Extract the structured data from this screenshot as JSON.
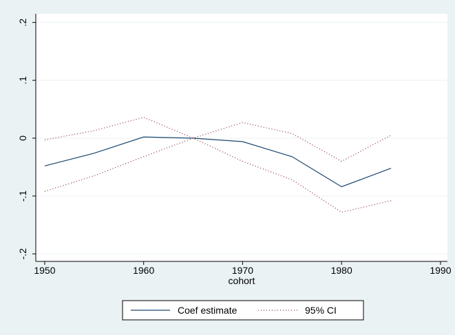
{
  "chart_data": {
    "type": "line",
    "x_label": "cohort",
    "x": [
      1950,
      1955,
      1960,
      1965,
      1970,
      1975,
      1980,
      1985
    ],
    "series": [
      {
        "name": "Coef estimate",
        "color": "#1a476f",
        "style": "solid",
        "values": [
          -0.048,
          -0.026,
          0.002,
          0.0,
          -0.006,
          -0.032,
          -0.084,
          -0.052
        ]
      },
      {
        "name": "95% CI",
        "color": "#90353b",
        "style": "dotted",
        "upper": [
          -0.003,
          0.013,
          0.036,
          0.0,
          0.027,
          0.008,
          -0.04,
          0.005
        ],
        "lower": [
          -0.092,
          -0.065,
          -0.032,
          0.0,
          -0.04,
          -0.072,
          -0.128,
          -0.108
        ]
      }
    ],
    "xlim": [
      1949.1,
      1990.7
    ],
    "xticks": [
      1950,
      1960,
      1970,
      1980,
      1990
    ],
    "ylim": [
      -0.213,
      0.215
    ],
    "yticks": [
      {
        "value": -0.2,
        "label": "-.2"
      },
      {
        "value": -0.1,
        "label": "-.1"
      },
      0,
      {
        "value": 0.1,
        "label": ".1"
      },
      {
        "value": 0.2,
        "label": ".2"
      }
    ],
    "grid": true,
    "legend": "bottom"
  }
}
